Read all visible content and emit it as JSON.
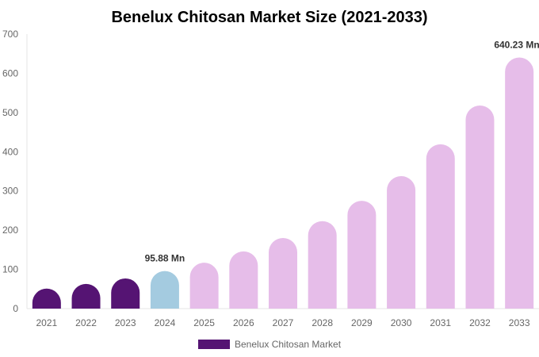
{
  "chart_data": {
    "type": "bar",
    "title": "Benelux Chitosan Market Size (2021-2033)",
    "categories": [
      "2021",
      "2022",
      "2023",
      "2024",
      "2025",
      "2026",
      "2027",
      "2028",
      "2029",
      "2030",
      "2031",
      "2032",
      "2033"
    ],
    "series": [
      {
        "name": "Benelux Chitosan Market",
        "values": [
          51,
          63,
          77,
          95.88,
          117,
          146,
          180,
          223,
          275,
          338,
          419,
          518,
          640.23
        ]
      }
    ],
    "data_labels": {
      "3": "95.88 Mn",
      "12": "640.23 Mn"
    },
    "yticks": [
      0,
      100,
      200,
      300,
      400,
      500,
      600,
      700
    ],
    "ylim": [
      0,
      700
    ],
    "grid": false,
    "legend_position": "bottom",
    "colors": {
      "historical": "#551473",
      "current": "#a4cbe0",
      "forecast": "#e6bde9"
    }
  }
}
